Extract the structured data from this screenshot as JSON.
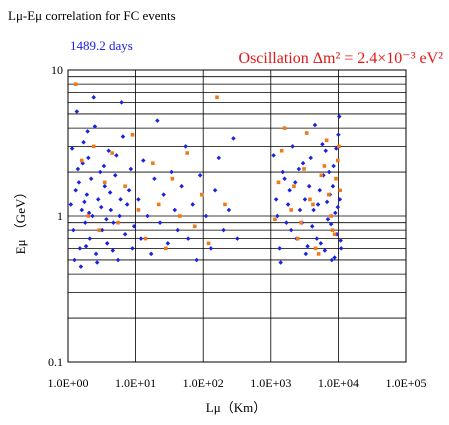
{
  "chart_data": {
    "type": "scatter",
    "title": "Lμ-Eμ correlation for FC events",
    "subtitle": "1489.2 days",
    "annotation": "Oscillation Δm² = 2.4×10⁻³ eV²",
    "xlabel": "Lμ（Km）",
    "ylabel": "Eμ （GeV）",
    "x_scale": "log",
    "y_scale": "log",
    "xlim": [
      1,
      100000
    ],
    "ylim": [
      0.1,
      10
    ],
    "x_ticks": [
      "1.0E+00",
      "1.0E+01",
      "1.0E+02",
      "1.0E+03",
      "1.0E+04",
      "1.0E+05"
    ],
    "y_ticks": [
      "0.1",
      "1",
      "10"
    ],
    "grid": "horizontal",
    "legend": "none",
    "colors": {
      "data": "#1a22e0",
      "oscillation": "#f07a1a",
      "title": "#000000",
      "subtitle": "#1a22e0",
      "annotation": "#e01818"
    },
    "series": [
      {
        "points": [
          [
            1.1,
            1.2
          ],
          [
            1.2,
            0.8
          ],
          [
            1.3,
            1.5
          ],
          [
            1.4,
            2.1
          ],
          [
            1.5,
            0.6
          ],
          [
            1.6,
            1.1
          ],
          [
            1.7,
            3.2
          ],
          [
            1.8,
            0.9
          ],
          [
            1.9,
            1.4
          ],
          [
            2.0,
            2.5
          ],
          [
            2.1,
            0.7
          ],
          [
            2.2,
            1.8
          ],
          [
            2.3,
            1.0
          ],
          [
            2.5,
            4.1
          ],
          [
            2.6,
            0.55
          ],
          [
            2.8,
            1.3
          ],
          [
            3.0,
            2.0
          ],
          [
            3.2,
            0.8
          ],
          [
            3.5,
            1.6
          ],
          [
            3.8,
            0.65
          ],
          [
            4.0,
            2.8
          ],
          [
            4.3,
            1.1
          ],
          [
            4.7,
            0.9
          ],
          [
            5.0,
            1.9
          ],
          [
            5.5,
            0.5
          ],
          [
            6.0,
            1.3
          ],
          [
            6.5,
            3.5
          ],
          [
            7.0,
            0.75
          ],
          [
            8.0,
            1.5
          ],
          [
            9.0,
            0.6
          ],
          [
            1.15,
            2.9
          ],
          [
            1.25,
            0.5
          ],
          [
            1.35,
            5.2
          ],
          [
            1.45,
            1.7
          ],
          [
            1.55,
            0.45
          ],
          [
            1.65,
            2.3
          ],
          [
            1.75,
            1.25
          ],
          [
            1.85,
            0.62
          ],
          [
            1.95,
            3.8
          ],
          [
            2.05,
            1.05
          ],
          [
            2.4,
            6.5
          ],
          [
            2.7,
            0.48
          ],
          [
            3.1,
            1.15
          ],
          [
            3.4,
            2.2
          ],
          [
            3.7,
            0.95
          ],
          [
            4.2,
            1.45
          ],
          [
            4.6,
            0.58
          ],
          [
            5.2,
            2.6
          ],
          [
            5.8,
            1.0
          ],
          [
            6.2,
            6.0
          ],
          [
            7.5,
            1.2
          ],
          [
            8.5,
            2.1
          ],
          [
            9.5,
            0.85
          ],
          [
            11,
            1.3
          ],
          [
            12,
            0.7
          ],
          [
            13,
            2.4
          ],
          [
            15,
            1.0
          ],
          [
            17,
            0.55
          ],
          [
            19,
            1.8
          ],
          [
            21,
            4.5
          ],
          [
            23,
            0.9
          ],
          [
            26,
            1.4
          ],
          [
            30,
            0.65
          ],
          [
            34,
            2.0
          ],
          [
            38,
            1.1
          ],
          [
            42,
            0.8
          ],
          [
            48,
            1.6
          ],
          [
            55,
            3.0
          ],
          [
            60,
            0.7
          ],
          [
            70,
            1.2
          ],
          [
            80,
            0.5
          ],
          [
            90,
            1.9
          ],
          [
            110,
            1.0
          ],
          [
            130,
            0.6
          ],
          [
            150,
            1.5
          ],
          [
            170,
            2.5
          ],
          [
            200,
            0.8
          ],
          [
            240,
            1.1
          ],
          [
            280,
            3.4
          ],
          [
            320,
            0.7
          ],
          [
            1200,
            1.3
          ],
          [
            1350,
            0.6
          ],
          [
            1500,
            2.0
          ],
          [
            1700,
            0.9
          ],
          [
            1900,
            1.5
          ],
          [
            2100,
            3.0
          ],
          [
            2400,
            0.7
          ],
          [
            2700,
            1.1
          ],
          [
            3000,
            2.3
          ],
          [
            3300,
            0.55
          ],
          [
            3700,
            1.6
          ],
          [
            4100,
            0.85
          ],
          [
            4500,
            4.2
          ],
          [
            5000,
            1.2
          ],
          [
            5500,
            0.65
          ],
          [
            6000,
            1.9
          ],
          [
            6500,
            2.8
          ],
          [
            7000,
            0.95
          ],
          [
            7500,
            1.4
          ],
          [
            8000,
            0.5
          ],
          [
            8500,
            2.2
          ],
          [
            9000,
            1.05
          ],
          [
            9500,
            0.75
          ],
          [
            10000,
            3.6
          ],
          [
            10500,
            1.3
          ],
          [
            11000,
            0.6
          ],
          [
            1100,
            2.6
          ],
          [
            1250,
            1.0
          ],
          [
            1400,
            0.48
          ],
          [
            1600,
            1.8
          ],
          [
            1800,
            1.2
          ],
          [
            2000,
            0.8
          ],
          [
            2300,
            1.7
          ],
          [
            2600,
            2.1
          ],
          [
            2900,
            0.9
          ],
          [
            3200,
            1.3
          ],
          [
            3500,
            0.62
          ],
          [
            3900,
            2.5
          ],
          [
            4300,
            1.1
          ],
          [
            4800,
            0.7
          ],
          [
            5300,
            1.5
          ],
          [
            5800,
            3.1
          ],
          [
            6300,
            0.58
          ],
          [
            6800,
            1.25
          ],
          [
            7300,
            2.0
          ],
          [
            7800,
            0.88
          ],
          [
            8300,
            1.6
          ],
          [
            8800,
            0.52
          ],
          [
            9300,
            2.9
          ],
          [
            9800,
            1.15
          ],
          [
            10300,
            4.8
          ],
          [
            10800,
            0.68
          ]
        ]
      },
      {
        "name": "Oscillation Δm² = 2.4×10⁻³ eV²",
        "points": [
          [
            1.3,
            8.0
          ],
          [
            1.6,
            2.4
          ],
          [
            2.0,
            1.0
          ],
          [
            2.4,
            3.0
          ],
          [
            2.9,
            0.8
          ],
          [
            3.5,
            1.7
          ],
          [
            4.5,
            2.7
          ],
          [
            5.5,
            0.9
          ],
          [
            7.0,
            1.6
          ],
          [
            9.0,
            3.6
          ],
          [
            11,
            1.1
          ],
          [
            14,
            0.7
          ],
          [
            18,
            2.3
          ],
          [
            22,
            1.2
          ],
          [
            28,
            0.6
          ],
          [
            35,
            1.8
          ],
          [
            45,
            1.0
          ],
          [
            58,
            2.7
          ],
          [
            75,
            0.85
          ],
          [
            95,
            1.4
          ],
          [
            120,
            0.65
          ],
          [
            160,
            6.5
          ],
          [
            210,
            1.2
          ],
          [
            1300,
            1.7
          ],
          [
            1600,
            4.0
          ],
          [
            2000,
            1.1
          ],
          [
            2500,
            0.7
          ],
          [
            3100,
            2.1
          ],
          [
            3800,
            1.3
          ],
          [
            4600,
            0.6
          ],
          [
            5600,
            1.9
          ],
          [
            6700,
            3.3
          ],
          [
            7800,
            1.0
          ],
          [
            8800,
            0.75
          ],
          [
            9800,
            2.4
          ],
          [
            10600,
            1.5
          ],
          [
            1150,
            0.95
          ],
          [
            1450,
            2.8
          ],
          [
            2200,
            1.6
          ],
          [
            2800,
            0.9
          ],
          [
            3400,
            3.7
          ],
          [
            4200,
            1.2
          ],
          [
            5100,
            0.55
          ],
          [
            6200,
            2.2
          ],
          [
            7200,
            1.4
          ],
          [
            8200,
            0.8
          ],
          [
            9200,
            1.8
          ],
          [
            10200,
            3.0
          ]
        ]
      }
    ]
  }
}
